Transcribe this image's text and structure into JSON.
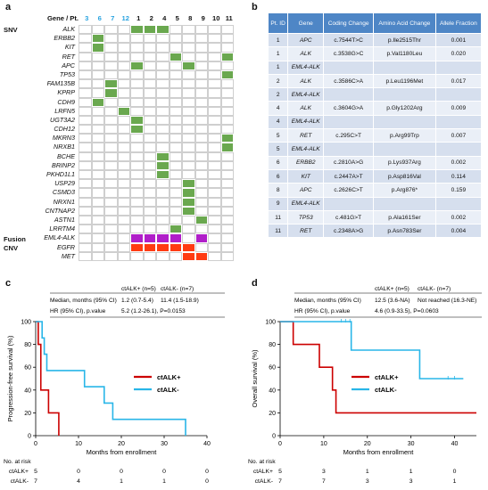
{
  "labels": {
    "a": "a",
    "b": "b",
    "c": "c",
    "d": "d"
  },
  "panel_a": {
    "header_title": "Gene / Pt.",
    "patients": [
      {
        "id": "3",
        "color": "blue"
      },
      {
        "id": "6",
        "color": "blue"
      },
      {
        "id": "7",
        "color": "blue"
      },
      {
        "id": "12",
        "color": "blue"
      },
      {
        "id": "1",
        "color": "black"
      },
      {
        "id": "2",
        "color": "black"
      },
      {
        "id": "4",
        "color": "black"
      },
      {
        "id": "5",
        "color": "black"
      },
      {
        "id": "8",
        "color": "black"
      },
      {
        "id": "9",
        "color": "black"
      },
      {
        "id": "10",
        "color": "black"
      },
      {
        "id": "11",
        "color": "black"
      }
    ],
    "categories": [
      {
        "name": "SNV",
        "row": 0
      },
      {
        "name": "Fusion",
        "row": 25
      },
      {
        "name": "CNV",
        "row": 26
      }
    ],
    "genes": [
      {
        "name": "ALK",
        "cells": [
          4,
          5,
          6
        ]
      },
      {
        "name": "ERBB2",
        "cells": [
          1
        ]
      },
      {
        "name": "KIT",
        "cells": [
          1
        ]
      },
      {
        "name": "RET",
        "cells": [
          7,
          11
        ]
      },
      {
        "name": "APC",
        "cells": [
          4,
          8
        ]
      },
      {
        "name": "TP53",
        "cells": [
          11
        ]
      },
      {
        "name": "FAM135B",
        "cells": [
          2
        ]
      },
      {
        "name": "KPRP",
        "cells": [
          2
        ]
      },
      {
        "name": "CDH9",
        "cells": [
          1
        ]
      },
      {
        "name": "LRFN5",
        "cells": [
          3
        ]
      },
      {
        "name": "UGT3A2",
        "cells": [
          4
        ]
      },
      {
        "name": "CDH12",
        "cells": [
          4
        ]
      },
      {
        "name": "MKRN3",
        "cells": [
          11
        ]
      },
      {
        "name": "NRXB1",
        "cells": [
          11
        ]
      },
      {
        "name": "BCHE",
        "cells": [
          6
        ]
      },
      {
        "name": "BRINP2",
        "cells": [
          6
        ]
      },
      {
        "name": "PKHD1L1",
        "cells": [
          6
        ]
      },
      {
        "name": "USP29",
        "cells": [
          8
        ]
      },
      {
        "name": "CSMD3",
        "cells": [
          8
        ]
      },
      {
        "name": "NRXN1",
        "cells": [
          8
        ]
      },
      {
        "name": "CNTNAP2",
        "cells": [
          8
        ]
      },
      {
        "name": "ASTN1",
        "cells": [
          9
        ]
      },
      {
        "name": "LRRTM4",
        "cells": [
          7
        ]
      },
      {
        "name": "EML4-ALK",
        "cells": [
          4,
          5,
          6,
          7,
          9
        ],
        "type": "fusion"
      },
      {
        "name": "EGFR",
        "cells": [
          4,
          5,
          6,
          7,
          8
        ],
        "type": "cnv"
      },
      {
        "name": "MET",
        "cells": [
          8,
          9
        ],
        "type": "cnv"
      }
    ]
  },
  "panel_b": {
    "headers": [
      "Pt. ID",
      "Gene",
      "Coding Change",
      "Amino Acid Change",
      "Allele Fraction"
    ],
    "rows": [
      [
        "1",
        "APC",
        "c.7544T>C",
        "p.Ile2515Thr",
        "0.001"
      ],
      [
        "1",
        "ALK",
        "c.3538G>C",
        "p.Val1180Leu",
        "0.020"
      ],
      [
        "1",
        "EML4-ALK",
        "",
        "",
        ""
      ],
      [
        "2",
        "ALK",
        "c.3586C>A",
        "p.Leu1196Met",
        "0.017"
      ],
      [
        "2",
        "EML4-ALK",
        "",
        "",
        ""
      ],
      [
        "4",
        "ALK",
        "c.3604G>A",
        "p.Gly1202Arg",
        "0.009"
      ],
      [
        "4",
        "EML4-ALK",
        "",
        "",
        ""
      ],
      [
        "5",
        "RET",
        "c.295C>T",
        "p.Arg99Trp",
        "0.007"
      ],
      [
        "5",
        "EML4-ALK",
        "",
        "",
        ""
      ],
      [
        "6",
        "ERBB2",
        "c.2810A>G",
        "p.Lys937Arg",
        "0.002"
      ],
      [
        "6",
        "KIT",
        "c.2447A>T",
        "p.Asp816Val",
        "0.114"
      ],
      [
        "8",
        "APC",
        "c.2626C>T",
        "p.Arg876*",
        "0.159"
      ],
      [
        "9",
        "EML4-ALK",
        "",
        "",
        ""
      ],
      [
        "11",
        "TP53",
        "c.481G>T",
        "p.Ala161Ser",
        "0.002"
      ],
      [
        "11",
        "RET",
        "c.2348A>G",
        "p.Asn783Ser",
        "0.004"
      ]
    ]
  },
  "chart_data": [
    {
      "type": "line",
      "panel": "c",
      "ylabel": "Progression-free survival (%)",
      "xlabel": "Months from enrollment",
      "xlim": [
        0,
        40
      ],
      "ylim": [
        0,
        100
      ],
      "xticks": [
        "0",
        "10",
        "20",
        "30",
        "40"
      ],
      "yticks": [
        "0",
        "20",
        "40",
        "60",
        "80",
        "100"
      ],
      "legend": [
        "ctALK+",
        "ctALK-"
      ],
      "series": [
        {
          "name": "ctALK+",
          "color": "#cc0000",
          "x": [
            0,
            0.6,
            1.2,
            2.2,
            3.0,
            5.4
          ],
          "y": [
            100,
            80,
            40,
            40,
            20,
            0
          ]
        },
        {
          "name": "ctALK-",
          "color": "#29b6e8",
          "x": [
            0,
            1.5,
            2.0,
            2.6,
            4.6,
            11.4,
            16.0,
            18.0,
            35.0
          ],
          "y": [
            100,
            85.7,
            71.4,
            57.1,
            57.1,
            42.9,
            28.6,
            14.3,
            0
          ]
        }
      ],
      "stats_header": [
        "ctALK+ (n=5)",
        "ctALK- (n=7)"
      ],
      "stats": [
        [
          "Median, months (95% CI)",
          "1.2 (0.7-5.4)",
          "11.4 (1.5-18.9)"
        ],
        [
          "HR (95% CI), p.value",
          "5.2 (1.2-26.1), P=0.0153",
          ""
        ]
      ],
      "risk_title": "No. at risk",
      "risk": [
        {
          "label": "ctALK+",
          "values": [
            "5",
            "0",
            "0",
            "0",
            "0"
          ]
        },
        {
          "label": "ctALK-",
          "values": [
            "7",
            "4",
            "1",
            "1",
            "0"
          ]
        }
      ]
    },
    {
      "type": "line",
      "panel": "d",
      "ylabel": "Overall survival (%)",
      "xlabel": "Months from enrollment",
      "xlim": [
        0,
        45
      ],
      "ylim": [
        0,
        100
      ],
      "xticks": [
        "0",
        "10",
        "20",
        "30",
        "40"
      ],
      "yticks": [
        "0",
        "20",
        "40",
        "60",
        "80",
        "100"
      ],
      "legend": [
        "ctALK+",
        "ctALK-"
      ],
      "series": [
        {
          "name": "ctALK+",
          "color": "#cc0000",
          "x": [
            0,
            3.0,
            9.0,
            12.0,
            12.8,
            45
          ],
          "y": [
            100,
            80,
            60,
            40,
            20,
            20
          ]
        },
        {
          "name": "ctALK-",
          "color": "#29b6e8",
          "x": [
            0,
            16.3,
            32.0,
            42.0
          ],
          "y": [
            100,
            75,
            50,
            50
          ]
        }
      ],
      "stats_header": [
        "ctALK+ (n=5)",
        "ctALK- (n=7)"
      ],
      "stats": [
        [
          "Median, months (95% CI)",
          "12.5 (3.6-NA)",
          "Not reached (16.3-NE)"
        ],
        [
          "HR (95% CI), p.value",
          "4.6 (0.9-33.5), P=0.0603",
          ""
        ]
      ],
      "risk_title": "No. at risk",
      "risk": [
        {
          "label": "ctALK+",
          "values": [
            "5",
            "3",
            "1",
            "1",
            "0"
          ]
        },
        {
          "label": "ctALK-",
          "values": [
            "7",
            "7",
            "3",
            "3",
            "1"
          ]
        }
      ]
    }
  ]
}
